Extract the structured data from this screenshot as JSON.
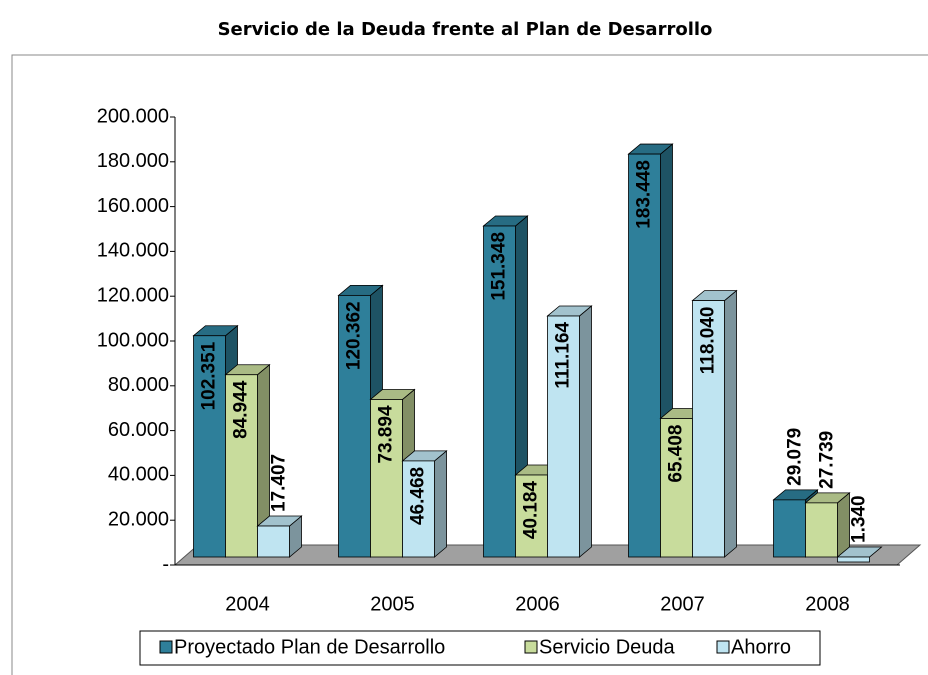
{
  "chart_data": {
    "type": "bar",
    "title": "Servicio de la Deuda frente al Plan de Desarrollo",
    "categories": [
      "2004",
      "2005",
      "2006",
      "2007",
      "2008"
    ],
    "series": [
      {
        "name": "Proyectado Plan de Desarrollo",
        "color": "#2e7f9a",
        "values": [
          102351,
          120362,
          151348,
          183448,
          29079
        ],
        "value_labels": [
          "102.351",
          "120.362",
          "151.348",
          "183.448",
          "29.079"
        ]
      },
      {
        "name": "Servicio Deuda",
        "color": "#c8dc9c",
        "values": [
          84944,
          73894,
          40184,
          65408,
          27739
        ],
        "value_labels": [
          "84.944",
          "73.894",
          "40.184",
          "65.408",
          "27.739"
        ]
      },
      {
        "name": "Ahorro",
        "color": "#bfe4f1",
        "values": [
          17407,
          46468,
          111164,
          118040,
          1340
        ],
        "value_labels": [
          "17.407",
          "46.468",
          "111.164",
          "118.040",
          "1.340"
        ]
      }
    ],
    "ylim": [
      0,
      200000
    ],
    "yticks": [
      {
        "value": 0,
        "label": "-"
      },
      {
        "value": 20000,
        "label": "20.000"
      },
      {
        "value": 40000,
        "label": "40.000"
      },
      {
        "value": 60000,
        "label": "60.000"
      },
      {
        "value": 80000,
        "label": "80.000"
      },
      {
        "value": 100000,
        "label": "100.000"
      },
      {
        "value": 120000,
        "label": "120.000"
      },
      {
        "value": 140000,
        "label": "140.000"
      },
      {
        "value": 160000,
        "label": "160.000"
      },
      {
        "value": 180000,
        "label": "180.000"
      },
      {
        "value": 200000,
        "label": "200.000"
      }
    ],
    "legend": "bottom"
  }
}
